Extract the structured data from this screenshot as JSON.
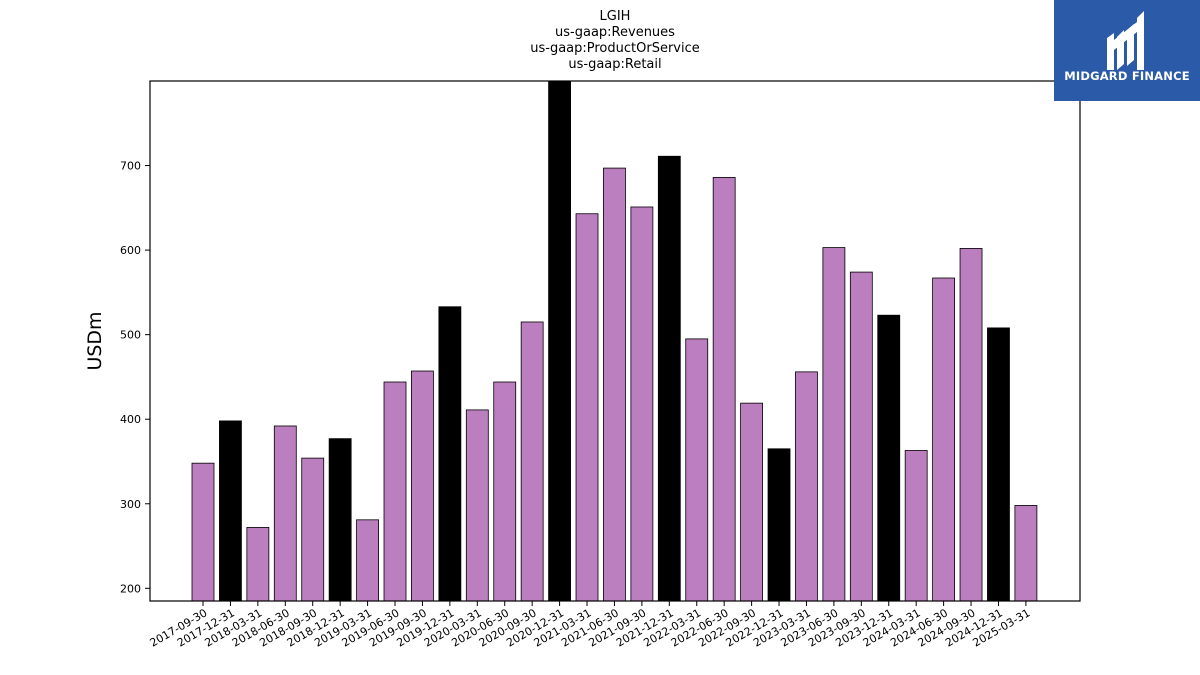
{
  "logo": {
    "text": "MIDGARD FINANCE",
    "icon": "midgard-mark-icon",
    "background": "#2a5aa8"
  },
  "colors": {
    "regular": "#bb7fbf",
    "highlight": "#000000",
    "edge": "#000000"
  },
  "chart_data": {
    "type": "bar",
    "title": [
      "LGIH",
      "us-gaap:Revenues",
      "us-gaap:ProductOrService",
      "us-gaap:Retail"
    ],
    "xlabel": "",
    "ylabel": "USDm",
    "ylim": [
      185,
      800
    ],
    "yticks": [
      200,
      300,
      400,
      500,
      600,
      700
    ],
    "grid": false,
    "categories": [
      "2017-09-30",
      "2017-12-31",
      "2018-03-31",
      "2018-06-30",
      "2018-09-30",
      "2018-12-31",
      "2019-03-31",
      "2019-06-30",
      "2019-09-30",
      "2019-12-31",
      "2020-03-31",
      "2020-06-30",
      "2020-09-30",
      "2020-12-31",
      "2021-03-31",
      "2021-06-30",
      "2021-09-30",
      "2021-12-31",
      "2022-03-31",
      "2022-06-30",
      "2022-09-30",
      "2022-12-31",
      "2023-03-31",
      "2023-06-30",
      "2023-09-30",
      "2023-12-31",
      "2024-03-31",
      "2024-06-30",
      "2024-09-30",
      "2024-12-31",
      "2025-03-31"
    ],
    "values": [
      348,
      398,
      272,
      392,
      354,
      377,
      281,
      444,
      457,
      533,
      411,
      444,
      515,
      800,
      643,
      697,
      651,
      711,
      495,
      686,
      419,
      365,
      456,
      603,
      574,
      523,
      363,
      567,
      602,
      508,
      298
    ],
    "highlight": [
      false,
      true,
      false,
      false,
      false,
      true,
      false,
      false,
      false,
      true,
      false,
      false,
      false,
      true,
      false,
      false,
      false,
      true,
      false,
      false,
      false,
      true,
      false,
      false,
      false,
      true,
      false,
      false,
      false,
      true,
      false
    ]
  }
}
